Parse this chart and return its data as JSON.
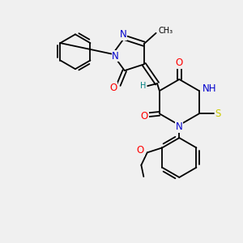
{
  "bg_color": "#f0f0f0",
  "bond_color": "#000000",
  "atom_colors": {
    "N": "#0000cc",
    "O": "#ff0000",
    "S": "#cccc00",
    "H": "#008080",
    "C": "#000000"
  },
  "lw": 1.3,
  "fs": 8.5,
  "fs_small": 7.0
}
